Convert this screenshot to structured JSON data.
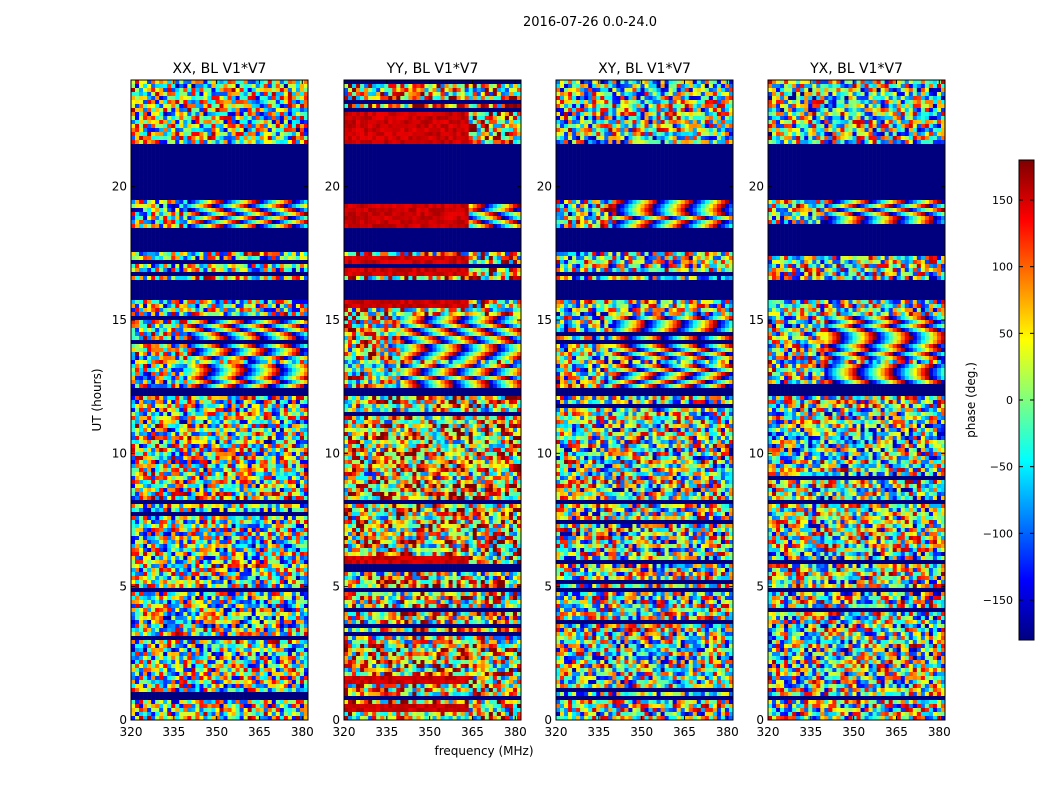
{
  "chart_data": {
    "type": "heatmap",
    "title": "2016-07-26 0.0-24.0",
    "xlabel": "frequency (MHz)",
    "ylabel": "UT (hours)",
    "xlim": [
      320,
      382
    ],
    "ylim": [
      0,
      24
    ],
    "x_ticks": [
      320,
      335,
      350,
      365,
      380
    ],
    "y_ticks": [
      0,
      5,
      10,
      15,
      20
    ],
    "panels": [
      {
        "name": "XX",
        "title": "XX, BL V1*V7",
        "bias": 0,
        "hot_bands": []
      },
      {
        "name": "YY",
        "title": "YY, BL V1*V7",
        "bias": 150,
        "hot_bands": [
          [
            21.5,
            22.8
          ],
          [
            18.4,
            19.6
          ],
          [
            16.6,
            17.4
          ],
          [
            15.5,
            15.8
          ],
          [
            5.9,
            6.1
          ],
          [
            1.4,
            1.6
          ],
          [
            0.3,
            0.6
          ]
        ]
      },
      {
        "name": "XY",
        "title": "XY, BL V1*V7",
        "bias": 0,
        "hot_bands": []
      },
      {
        "name": "YX",
        "title": "YX, BL V1*V7",
        "bias": 0,
        "hot_bands": []
      }
    ],
    "flagged_ranges_hours": [
      [
        19.5,
        21.6
      ],
      [
        18.2,
        18.4
      ],
      [
        17.5,
        18.1
      ],
      [
        16.0,
        16.5
      ],
      [
        15.8,
        16.0
      ],
      [
        12.2,
        12.4
      ],
      [
        8.1,
        8.3
      ],
      [
        4.8,
        4.9
      ],
      [
        1.9,
        2.0
      ],
      [
        1.3,
        1.4
      ],
      [
        0.8,
        0.9
      ]
    ],
    "fringe_bands_hours": [
      [
        13.5,
        15.2
      ],
      [
        12.4,
        13.4
      ],
      [
        18.4,
        19.5
      ]
    ],
    "colorbar": {
      "label": "phase (deg.)",
      "range": [
        -180,
        180
      ],
      "ticks": [
        -150,
        -100,
        -50,
        0,
        50,
        100,
        150
      ],
      "tick_labels": [
        "−150",
        "−100",
        "−50",
        "0",
        "50",
        "100",
        "150"
      ],
      "colormap": "jet"
    },
    "colors": {
      "jet": [
        "#00007f",
        "#0000ff",
        "#007fff",
        "#00ffff",
        "#7fff7f",
        "#ffff00",
        "#ff7f00",
        "#ff0000",
        "#7f0000"
      ],
      "frame": "#000000"
    }
  }
}
